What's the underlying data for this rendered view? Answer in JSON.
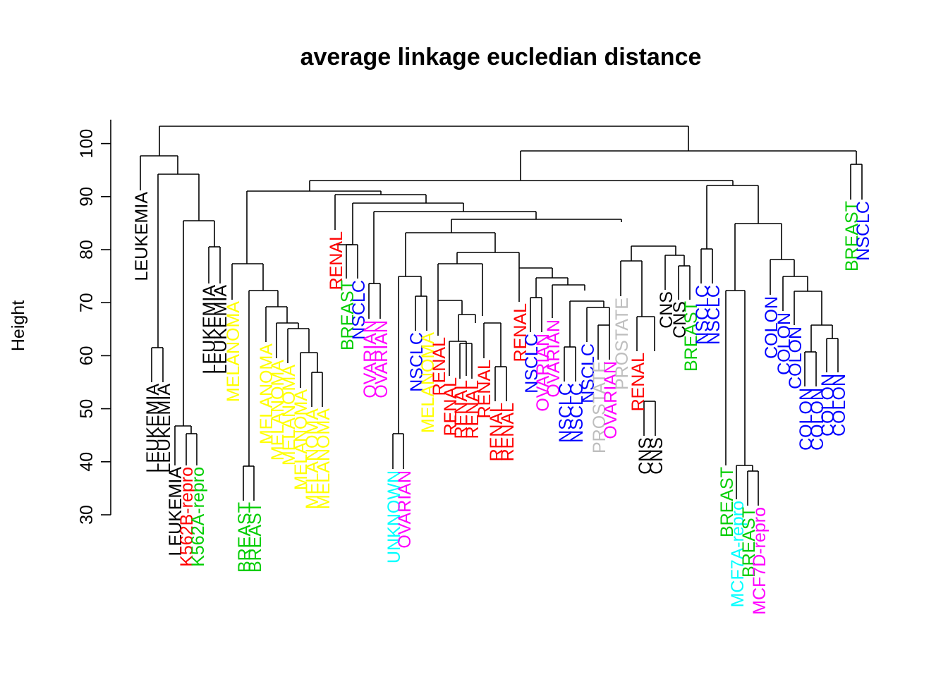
{
  "chart_data": {
    "type": "dendrogram",
    "title": "average linkage eucledian distance",
    "ylabel": "Height",
    "ylim": [
      30,
      104
    ],
    "yticks": [
      30,
      40,
      50,
      60,
      70,
      80,
      90,
      100
    ],
    "colors": {
      "LEUKEMIA": "#000000",
      "CNS": "#000000",
      "K562B-repro": "#ff0000",
      "RENAL": "#ff0000",
      "K562A-repro": "#00cd00",
      "BREAST": "#00cd00",
      "MCF7A-repro": "#00ffff",
      "MELANOMA": "#ffff00",
      "NSCLC": "#0000ff",
      "COLON": "#0000ff",
      "OVARIAN": "#ff00ff",
      "MCF7D-repro": "#ff00ff",
      "UNKNOWN": "#00ffff",
      "PROSTATE": "#bebebe"
    },
    "leaves": [
      "LEUKEMIA",
      "LEUKEMIA",
      "LEUKEMIA",
      "LEUKEMIA",
      "K562B-repro",
      "K562A-repro",
      "LEUKEMIA",
      "LEUKEMIA",
      "MELANOMA",
      "BREAST",
      "BREAST",
      "MELANOMA",
      "MELANOMA",
      "MELANOMA",
      "MELANOMA",
      "MELANOMA",
      "MELANOMA",
      "RENAL",
      "BREAST",
      "NSCLC",
      "OVARIAN",
      "OVARIAN",
      "UNKNOWN",
      "OVARIAN",
      "NSCLC",
      "MELANOMA",
      "RENAL",
      "RENAL",
      "RENAL",
      "RENAL",
      "RENAL",
      "RENAL",
      "RENAL",
      "RENAL",
      "NSCLC",
      "OVARIAN",
      "OVARIAN",
      "NSCLC",
      "NSCLC",
      "NSCLC",
      "PROSTATE",
      "OVARIAN",
      "PROSTATE",
      "RENAL",
      "CNS",
      "CNS",
      "CNS",
      "CNS",
      "BREAST",
      "NSCLC",
      "NSCLC",
      "BREAST",
      "MCF7A-repro",
      "BREAST",
      "MCF7D-repro",
      "COLON",
      "COLON",
      "COLON",
      "COLON",
      "COLON",
      "COLON",
      "COLON",
      "BREAST",
      "NSCLC"
    ],
    "merges": [
      [
        -3,
        -4
      ],
      [
        -5,
        -6
      ],
      [
        -2,
        1
      ],
      [
        -7,
        -8
      ],
      [
        2,
        4
      ],
      [
        3,
        5
      ],
      [
        -1,
        6
      ],
      [
        -10,
        -11
      ],
      [
        -15,
        -16
      ],
      [
        -14,
        9
      ],
      [
        -13,
        10
      ],
      [
        -12,
        11
      ],
      [
        8,
        12
      ],
      [
        -9,
        13
      ],
      [
        -19,
        -20
      ],
      [
        -18,
        15
      ],
      [
        -21,
        -22
      ],
      [
        -23,
        -24
      ],
      [
        -25,
        -26
      ],
      [
        18,
        19
      ],
      [
        -29,
        -30
      ],
      [
        -28,
        21
      ],
      [
        -27,
        22
      ],
      [
        -31,
        -32
      ],
      [
        -33,
        -34
      ],
      [
        -35,
        -36
      ],
      [
        -37,
        -38
      ],
      [
        -41,
        -42
      ],
      [
        -40,
        28
      ],
      [
        -39,
        29
      ],
      [
        -43,
        -44
      ],
      [
        30,
        31
      ],
      [
        -45,
        -46
      ],
      [
        -47,
        -48
      ],
      [
        -53,
        -54
      ],
      [
        -55,
        -56
      ],
      [
        -52,
        35
      ],
      [
        -63,
        -64
      ],
      [
        -64,
        -64
      ],
      [
        -60,
        -61
      ],
      [
        -59,
        40
      ],
      [
        -62,
        41
      ],
      [
        -58,
        42
      ],
      [
        -57,
        43
      ],
      [
        24,
        25
      ],
      [
        23,
        45
      ],
      [
        26,
        27
      ],
      [
        46,
        47
      ],
      [
        48,
        32
      ],
      [
        20,
        49
      ],
      [
        17,
        50
      ],
      [
        16,
        51
      ],
      [
        14,
        52
      ],
      [
        33,
        34
      ],
      [
        -49,
        -50
      ],
      [
        -51,
        -52
      ],
      [
        54,
        55
      ],
      [
        56,
        44
      ],
      [
        53,
        57
      ],
      [
        58,
        37
      ],
      [
        7,
        59
      ]
    ],
    "heights": []
  }
}
